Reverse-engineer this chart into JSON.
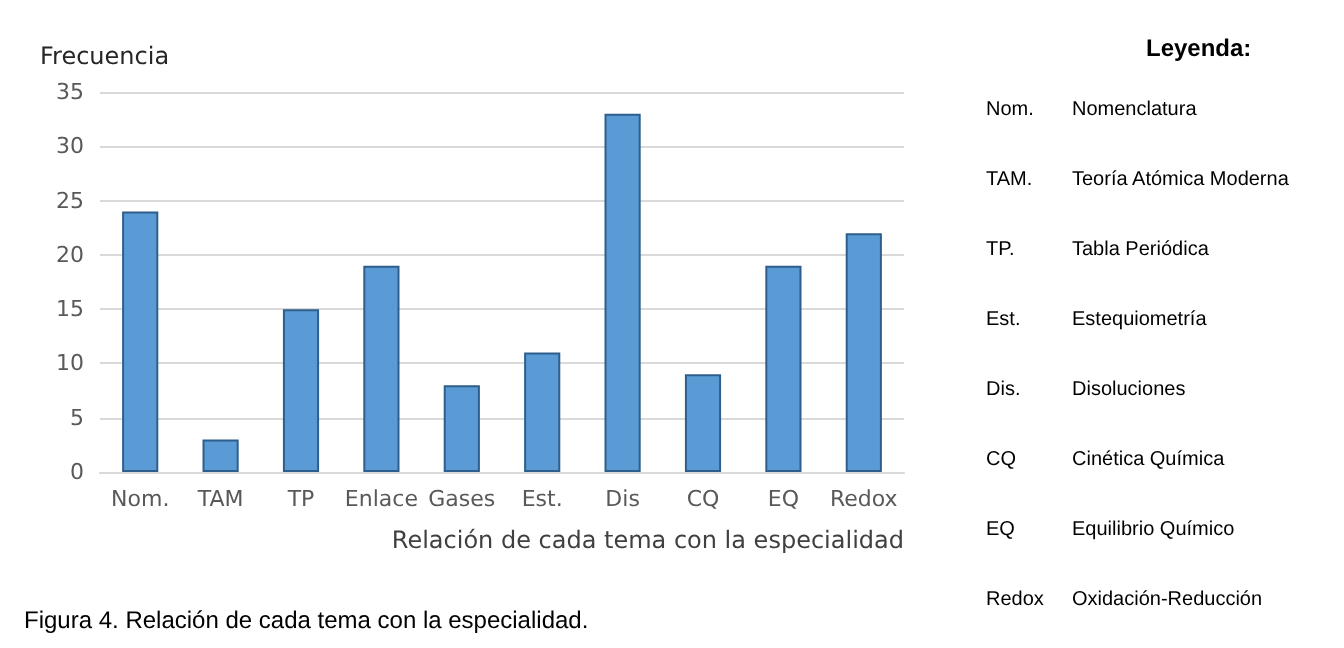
{
  "chart_data": {
    "type": "bar",
    "ylabel": "Frecuencia",
    "xlabel": "Relación de cada tema con la especialidad",
    "categories": [
      "Nom.",
      "TAM",
      "TP",
      "Enlace",
      "Gases",
      "Est.",
      "Dis",
      "CQ",
      "EQ",
      "Redox"
    ],
    "values": [
      24,
      3,
      15,
      19,
      8,
      11,
      33,
      9,
      19,
      22
    ],
    "color": "#5b9bd5",
    "ylim": [
      0,
      35
    ],
    "yticks": [
      0,
      5,
      10,
      15,
      20,
      25,
      30,
      35
    ],
    "grid": "y",
    "annotations": [
      "Leyenda:",
      "Nom.",
      "Nomenclatura",
      "TAM.",
      "Teoría Atómica Moderna",
      "TP.",
      "Tabla Periódica",
      "Est.",
      "Estequiometría",
      "Dis.",
      "Disoluciones",
      "CQ",
      "Cinética Química",
      "EQ",
      "Equilibrio Químico",
      "Redox",
      "Oxidación-Reducción",
      "Figura 4. Relación de cada tema con la especialidad."
    ]
  }
}
